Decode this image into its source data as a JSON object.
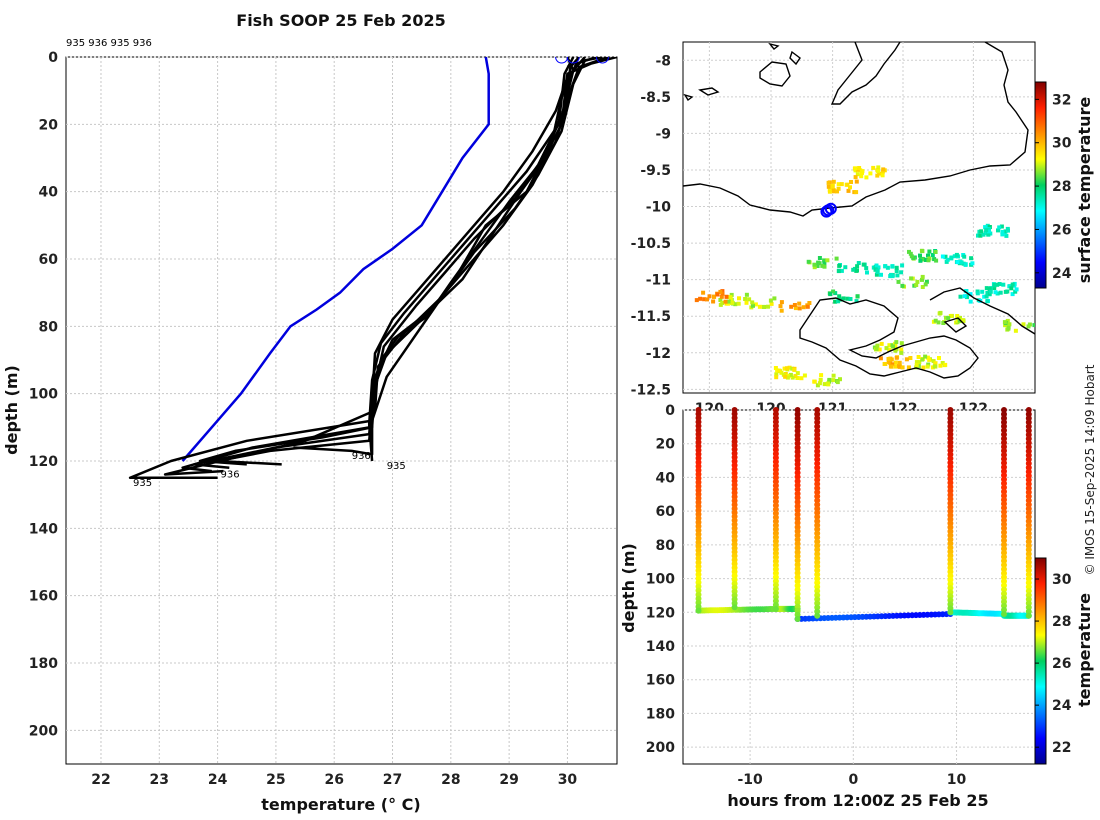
{
  "title": "Fish SOOP 25 Feb 2025",
  "credit": "© IMOS 15-Sep-2025 14:09 Hobart",
  "colors": {
    "profile": "#000000",
    "climatology": "#0000dd",
    "marker": "#0000ff",
    "coast": "#000000"
  },
  "chart_data": [
    {
      "id": "profiles",
      "type": "line",
      "xlabel": "temperature (° C)",
      "ylabel": "depth (m)",
      "xlim": [
        21.4,
        30.85
      ],
      "ylim": [
        210,
        0
      ],
      "xticks": [
        "22",
        "23",
        "24",
        "25",
        "26",
        "27",
        "28",
        "29",
        "30"
      ],
      "yticks": [
        "0",
        "20",
        "40",
        "60",
        "80",
        "100",
        "120",
        "140",
        "160",
        "180",
        "200"
      ],
      "drop_labels_top": "935 936 935 936",
      "end_labels": [
        {
          "text": "935",
          "x": 22.55,
          "y": 125
        },
        {
          "text": "936",
          "x": 24.05,
          "y": 122.5
        },
        {
          "text": "936",
          "x": 26.3,
          "y": 117
        },
        {
          "text": "935",
          "x": 26.9,
          "y": 120
        }
      ],
      "climatology": {
        "name": "climatology",
        "points": [
          [
            28.6,
            0
          ],
          [
            28.65,
            5
          ],
          [
            28.65,
            20
          ],
          [
            28.2,
            30
          ],
          [
            27.85,
            40
          ],
          [
            27.5,
            50
          ],
          [
            27.0,
            57
          ],
          [
            26.5,
            63
          ],
          [
            26.1,
            70
          ],
          [
            25.7,
            75
          ],
          [
            25.25,
            80
          ],
          [
            24.9,
            88
          ],
          [
            24.4,
            100
          ],
          [
            23.9,
            110
          ],
          [
            23.4,
            120
          ]
        ]
      },
      "series": [
        {
          "name": "p1",
          "points": [
            [
              30.85,
              0
            ],
            [
              30.4,
              2
            ],
            [
              30.0,
              5
            ],
            [
              29.9,
              20
            ],
            [
              29.6,
              30
            ],
            [
              29.3,
              40
            ],
            [
              28.6,
              50
            ],
            [
              28.1,
              65
            ],
            [
              27.7,
              75
            ],
            [
              27.3,
              85
            ],
            [
              26.9,
              95
            ],
            [
              26.65,
              108
            ],
            [
              24.5,
              114
            ],
            [
              23.2,
              120
            ],
            [
              22.5,
              125
            ],
            [
              24.0,
              125
            ]
          ]
        },
        {
          "name": "p2",
          "points": [
            [
              30.7,
              0
            ],
            [
              30.2,
              3
            ],
            [
              30.05,
              10
            ],
            [
              29.8,
              25
            ],
            [
              29.4,
              38
            ],
            [
              28.9,
              50
            ],
            [
              28.3,
              62
            ],
            [
              27.8,
              72
            ],
            [
              27.2,
              82
            ],
            [
              26.75,
              92
            ],
            [
              26.7,
              105
            ],
            [
              25.5,
              114
            ],
            [
              23.8,
              121
            ],
            [
              23.1,
              124
            ],
            [
              24.1,
              123
            ]
          ]
        },
        {
          "name": "p3",
          "points": [
            [
              30.6,
              0
            ],
            [
              30.3,
              1
            ],
            [
              30.1,
              8
            ],
            [
              29.9,
              22
            ],
            [
              29.5,
              35
            ],
            [
              29.1,
              45
            ],
            [
              28.4,
              58
            ],
            [
              27.9,
              70
            ],
            [
              27.5,
              78
            ],
            [
              26.9,
              88
            ],
            [
              26.65,
              100
            ],
            [
              26.6,
              110
            ],
            [
              24.6,
              116
            ],
            [
              23.4,
              122
            ],
            [
              23.9,
              123
            ]
          ]
        },
        {
          "name": "p4",
          "points": [
            [
              30.5,
              0
            ],
            [
              30.15,
              2
            ],
            [
              29.9,
              12
            ],
            [
              29.7,
              28
            ],
            [
              29.2,
              40
            ],
            [
              28.7,
              53
            ],
            [
              28.2,
              66
            ],
            [
              27.6,
              76
            ],
            [
              27.0,
              84
            ],
            [
              26.7,
              95
            ],
            [
              26.6,
              112
            ],
            [
              25.0,
              116
            ],
            [
              23.6,
              121
            ],
            [
              24.2,
              122
            ]
          ]
        },
        {
          "name": "p5",
          "points": [
            [
              30.2,
              0
            ],
            [
              30.05,
              3
            ],
            [
              29.95,
              15
            ],
            [
              29.6,
              30
            ],
            [
              29.0,
              43
            ],
            [
              28.5,
              55
            ],
            [
              28.0,
              67
            ],
            [
              27.6,
              77
            ],
            [
              27.1,
              83
            ],
            [
              26.8,
              90
            ],
            [
              26.65,
              104
            ],
            [
              26.6,
              114
            ],
            [
              24.9,
              117
            ],
            [
              24.0,
              120
            ],
            [
              25.1,
              121
            ]
          ]
        },
        {
          "name": "p6",
          "points": [
            [
              30.0,
              0
            ],
            [
              30.1,
              4
            ],
            [
              29.9,
              18
            ],
            [
              29.5,
              32
            ],
            [
              29.1,
              42
            ],
            [
              28.4,
              54
            ],
            [
              27.9,
              64
            ],
            [
              27.4,
              74
            ],
            [
              26.85,
              86
            ],
            [
              26.7,
              98
            ],
            [
              26.65,
              110
            ],
            [
              25.8,
              113
            ],
            [
              24.3,
              117
            ],
            [
              23.7,
              120
            ],
            [
              24.5,
              121
            ]
          ]
        },
        {
          "name": "p7",
          "points": [
            [
              30.3,
              0
            ],
            [
              30.0,
              6
            ],
            [
              29.8,
              16
            ],
            [
              29.4,
              28
            ],
            [
              28.9,
              40
            ],
            [
              28.5,
              48
            ],
            [
              28.0,
              58
            ],
            [
              27.5,
              68
            ],
            [
              27.0,
              78
            ],
            [
              26.7,
              88
            ],
            [
              26.65,
              102
            ],
            [
              26.65,
              118
            ],
            [
              26.3,
              117
            ],
            [
              25.3,
              116
            ]
          ]
        },
        {
          "name": "p8",
          "points": [
            [
              30.1,
              0
            ],
            [
              29.95,
              5
            ],
            [
              29.85,
              20
            ],
            [
              29.3,
              34
            ],
            [
              28.7,
              46
            ],
            [
              28.2,
              56
            ],
            [
              27.7,
              66
            ],
            [
              27.2,
              76
            ],
            [
              26.8,
              85
            ],
            [
              26.65,
              96
            ],
            [
              26.6,
              109
            ],
            [
              26.65,
              120
            ]
          ]
        }
      ],
      "markers": [
        [
          29.9,
          0
        ],
        [
          30.1,
          0
        ],
        [
          30.6,
          0
        ]
      ]
    },
    {
      "id": "map",
      "type": "heatmap",
      "xticks": [
        "120",
        "120",
        "121",
        "122",
        "122"
      ],
      "yticks": [
        "-8",
        "-8.5",
        "-9",
        "-9.5",
        "-10",
        "-10.5",
        "-11",
        "-11.5",
        "-12",
        "-12.5"
      ],
      "xlim": [
        119.3,
        123.3
      ],
      "ylim": [
        -12.55,
        -7.75
      ],
      "colorbar": {
        "label": "surface temperature",
        "ticks": [
          "24",
          "26",
          "28",
          "30",
          "32"
        ],
        "range": [
          23.3,
          32.8
        ]
      },
      "ship_position": [
        120.95,
        -10.05
      ],
      "sst_patches": [
        {
          "lon": 119.85,
          "lat": -11.25,
          "t": 29.0
        },
        {
          "lon": 119.6,
          "lat": -11.2,
          "t": 30.5
        },
        {
          "lon": 120.2,
          "lat": -11.28,
          "t": 29.0
        },
        {
          "lon": 120.55,
          "lat": -11.35,
          "t": 30.2
        },
        {
          "lon": 120.5,
          "lat": -12.25,
          "t": 29.3
        },
        {
          "lon": 120.9,
          "lat": -12.35,
          "t": 29.0
        },
        {
          "lon": 121.7,
          "lat": -12.1,
          "t": 30.0
        },
        {
          "lon": 122.1,
          "lat": -12.1,
          "t": 29.1
        },
        {
          "lon": 121.6,
          "lat": -11.9,
          "t": 29.0
        },
        {
          "lon": 121.2,
          "lat": -10.8,
          "t": 27.6
        },
        {
          "lon": 121.6,
          "lat": -10.85,
          "t": 27.5
        },
        {
          "lon": 122.4,
          "lat": -10.7,
          "t": 27.3
        },
        {
          "lon": 122.0,
          "lat": -10.65,
          "t": 28.3
        },
        {
          "lon": 122.6,
          "lat": -11.2,
          "t": 27.2
        },
        {
          "lon": 122.9,
          "lat": -11.1,
          "t": 27.4
        },
        {
          "lon": 122.3,
          "lat": -11.5,
          "t": 28.9
        },
        {
          "lon": 121.9,
          "lat": -11.0,
          "t": 28.6
        },
        {
          "lon": 121.4,
          "lat": -9.5,
          "t": 29.5
        },
        {
          "lon": 121.1,
          "lat": -9.7,
          "t": 29.7
        },
        {
          "lon": 122.8,
          "lat": -10.3,
          "t": 27.4
        },
        {
          "lon": 120.85,
          "lat": -10.75,
          "t": 28.5
        },
        {
          "lon": 123.1,
          "lat": -11.6,
          "t": 28.7
        },
        {
          "lon": 121.1,
          "lat": -11.2,
          "t": 27.9
        }
      ]
    },
    {
      "id": "section",
      "type": "scatter",
      "xlabel": "hours from 12:00Z 25 Feb 25",
      "ylabel": "depth (m)",
      "xlim": [
        -16.5,
        17.6
      ],
      "ylim": [
        210,
        0
      ],
      "xticks": [
        "-10",
        "0",
        "10"
      ],
      "yticks": [
        "0",
        "20",
        "40",
        "60",
        "80",
        "100",
        "120",
        "140",
        "160",
        "180",
        "200"
      ],
      "colorbar": {
        "label": "temperature",
        "ticks": [
          "22",
          "24",
          "26",
          "28",
          "30"
        ],
        "range": [
          21.2,
          31.0
        ]
      },
      "casts": [
        {
          "t": -15.0,
          "bottom": 119,
          "sst": 30.6
        },
        {
          "t": -11.5,
          "bottom": 117,
          "sst": 30.7
        },
        {
          "t": -7.5,
          "bottom": 118,
          "sst": 30.5
        },
        {
          "t": -5.4,
          "bottom": 124,
          "sst": 30.8
        },
        {
          "t": -3.5,
          "bottom": 122,
          "sst": 30.6
        },
        {
          "t": 9.4,
          "bottom": 120,
          "sst": 30.7
        },
        {
          "t": 14.6,
          "bottom": 121,
          "sst": 30.9
        },
        {
          "t": 17.0,
          "bottom": 122,
          "sst": 30.8
        }
      ],
      "tows": [
        {
          "t0": -15.0,
          "t1": -7.5,
          "d0": 119,
          "d1": 118,
          "temp": 26.8
        },
        {
          "t0": -7.5,
          "t1": -5.4,
          "d0": 118,
          "d1": 118,
          "temp": 26.6
        },
        {
          "t0": -5.4,
          "t1": 9.4,
          "d0": 124,
          "d1": 121,
          "temp": 22.9
        },
        {
          "t0": 9.4,
          "t1": 14.6,
          "d0": 120,
          "d1": 121,
          "temp": 25.0
        },
        {
          "t0": 14.6,
          "t1": 17.0,
          "d0": 122,
          "d1": 122,
          "temp": 25.3
        }
      ]
    }
  ]
}
